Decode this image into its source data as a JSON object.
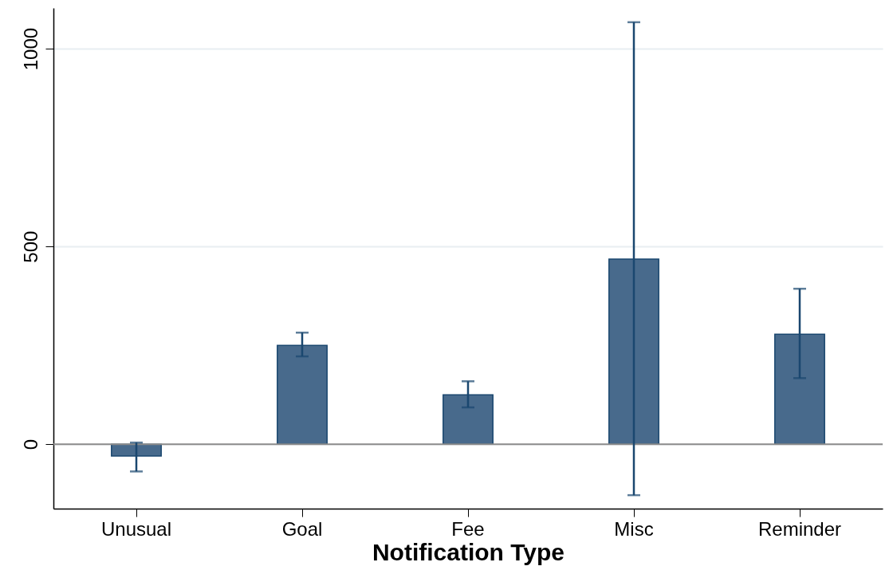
{
  "chart_data": {
    "type": "bar",
    "xlabel": "Notification Type",
    "categories": [
      "Unusual",
      "Goal",
      "Fee",
      "Misc",
      "Reminder"
    ],
    "values": [
      -30,
      250,
      125,
      468,
      278
    ],
    "errors": [
      [
        -69,
        4
      ],
      [
        222,
        282
      ],
      [
        93,
        159
      ],
      [
        -129,
        1067
      ],
      [
        167,
        393
      ]
    ],
    "color": "#486a8c",
    "ylim": [
      -163,
      1103
    ],
    "yticks": [
      0,
      500,
      1000
    ],
    "grid": "y",
    "ref_lines": [
      {
        "axis": "y",
        "value": 0,
        "color": "#8c8c8c"
      }
    ]
  }
}
